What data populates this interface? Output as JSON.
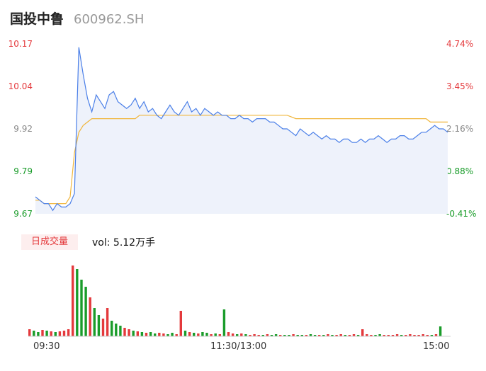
{
  "header": {
    "name": "国投中鲁",
    "code": "600962.SH"
  },
  "chart_data": [
    {
      "type": "line",
      "y_ticks": [
        "10.17",
        "10.04",
        "9.92",
        "9.79",
        "9.67"
      ],
      "y_right_ticks": [
        "4.74%",
        "3.45%",
        "2.16%",
        "0.88%",
        "-0.41%"
      ],
      "ylim": [
        9.67,
        10.17
      ],
      "x_ticks": [
        "09:30",
        "11:30/13:00",
        "15:00"
      ],
      "series": [
        {
          "values": [
            9.72,
            9.71,
            9.7,
            9.7,
            9.68,
            9.7,
            9.69,
            9.69,
            9.7,
            9.73,
            10.16,
            10.08,
            10.01,
            9.97,
            10.02,
            10.0,
            9.98,
            10.02,
            10.03,
            10.0,
            9.99,
            9.98,
            9.99,
            10.01,
            9.98,
            10.0,
            9.97,
            9.98,
            9.96,
            9.95,
            9.97,
            9.99,
            9.97,
            9.96,
            9.98,
            10.0,
            9.97,
            9.98,
            9.96,
            9.98,
            9.97,
            9.96,
            9.97,
            9.96,
            9.96,
            9.95,
            9.95,
            9.96,
            9.95,
            9.95,
            9.94,
            9.95,
            9.95,
            9.95,
            9.94,
            9.94,
            9.93,
            9.92,
            9.92,
            9.91,
            9.9,
            9.92,
            9.91,
            9.9,
            9.91,
            9.9,
            9.89,
            9.9,
            9.89,
            9.89,
            9.88,
            9.89,
            9.89,
            9.88,
            9.88,
            9.89,
            9.88,
            9.89,
            9.89,
            9.9,
            9.89,
            9.88,
            9.89,
            9.89,
            9.9,
            9.9,
            9.89,
            9.89,
            9.9,
            9.91,
            9.91,
            9.92,
            9.93,
            9.92,
            9.92,
            9.91
          ]
        },
        {
          "values": [
            9.71,
            9.71,
            9.7,
            9.7,
            9.7,
            9.7,
            9.7,
            9.7,
            9.72,
            9.85,
            9.91,
            9.93,
            9.94,
            9.95,
            9.95,
            9.95,
            9.95,
            9.95,
            9.95,
            9.95,
            9.95,
            9.95,
            9.95,
            9.95,
            9.96,
            9.96,
            9.96,
            9.96,
            9.96,
            9.96,
            9.96,
            9.96,
            9.96,
            9.96,
            9.96,
            9.96,
            9.96,
            9.96,
            9.96,
            9.96,
            9.96,
            9.96,
            9.96,
            9.96,
            9.96,
            9.96,
            9.96,
            9.96,
            9.96,
            9.96,
            9.96,
            9.96,
            9.96,
            9.96,
            9.96,
            9.96,
            9.96,
            9.96,
            9.96,
            9.955,
            9.95,
            9.95,
            9.95,
            9.95,
            9.95,
            9.95,
            9.95,
            9.95,
            9.95,
            9.95,
            9.95,
            9.95,
            9.95,
            9.95,
            9.95,
            9.95,
            9.95,
            9.95,
            9.95,
            9.95,
            9.95,
            9.95,
            9.95,
            9.95,
            9.95,
            9.95,
            9.95,
            9.95,
            9.95,
            9.95,
            9.95,
            9.94,
            9.94,
            9.94,
            9.94,
            9.94
          ],
          "color": "#f0b53a"
        }
      ],
      "colors": {
        "price": "#4a7fe8",
        "area": "#eef2fb"
      }
    },
    {
      "type": "bar",
      "title": "日成交量",
      "summary": "vol: 5.12万手",
      "values": [
        10,
        8,
        6,
        9,
        8,
        7,
        6,
        7,
        8,
        10,
        100,
        95,
        80,
        70,
        55,
        40,
        30,
        25,
        40,
        22,
        18,
        15,
        12,
        10,
        8,
        7,
        6,
        5,
        6,
        4,
        5,
        4,
        3,
        5,
        3,
        36,
        8,
        6,
        5,
        4,
        6,
        5,
        3,
        4,
        3,
        38,
        6,
        4,
        3,
        4,
        3,
        2,
        3,
        2,
        2,
        3,
        2,
        3,
        2,
        2,
        2,
        3,
        2,
        2,
        2,
        3,
        2,
        2,
        2,
        3,
        2,
        2,
        3,
        2,
        2,
        3,
        2,
        10,
        3,
        2,
        2,
        3,
        2,
        2,
        2,
        3,
        2,
        2,
        3,
        2,
        2,
        3,
        2,
        2,
        3,
        14
      ],
      "colors": {
        "up": "#e4393c",
        "down": "#1a9c2a"
      }
    }
  ]
}
